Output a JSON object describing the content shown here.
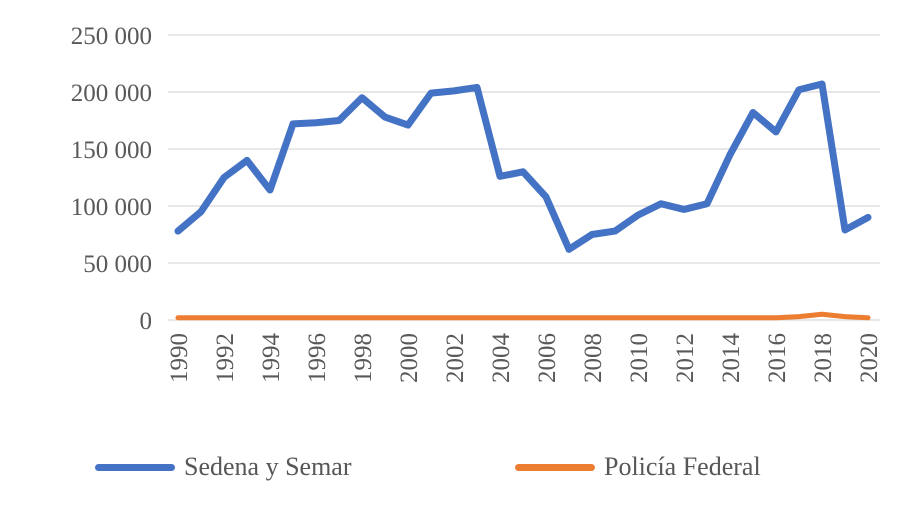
{
  "chart_data": {
    "type": "line",
    "title": "",
    "xlabel": "",
    "ylabel": "",
    "x": [
      1990,
      1991,
      1992,
      1993,
      1994,
      1995,
      1996,
      1997,
      1998,
      1999,
      2000,
      2001,
      2002,
      2003,
      2004,
      2005,
      2006,
      2007,
      2008,
      2009,
      2010,
      2011,
      2012,
      2013,
      2014,
      2015,
      2016,
      2017,
      2018,
      2019,
      2020
    ],
    "series": [
      {
        "name": "Sedena y Semar",
        "color": "#4472C4",
        "stroke_width": 7,
        "values": [
          78000,
          95000,
          125000,
          140000,
          114000,
          172000,
          173000,
          175000,
          195000,
          178000,
          171000,
          199000,
          201000,
          204000,
          126000,
          130000,
          108000,
          62000,
          75000,
          78000,
          92000,
          102000,
          97000,
          102000,
          145000,
          182000,
          165000,
          202000,
          207000,
          79000,
          90000
        ]
      },
      {
        "name": "Policía Federal",
        "color": "#ED7D31",
        "stroke_width": 5,
        "values": [
          2000,
          2000,
          2000,
          2000,
          2000,
          2000,
          2000,
          2000,
          2000,
          2000,
          2000,
          2000,
          2000,
          2000,
          2000,
          2000,
          2000,
          2000,
          2000,
          2000,
          2000,
          2000,
          2000,
          2000,
          2000,
          2000,
          2000,
          3000,
          5000,
          3000,
          2000
        ]
      }
    ],
    "ylim": [
      0,
      250000
    ],
    "yticks": [
      {
        "value": 0,
        "label": "0"
      },
      {
        "value": 50000,
        "label": "50 000"
      },
      {
        "value": 100000,
        "label": "100 000"
      },
      {
        "value": 150000,
        "label": "150 000"
      },
      {
        "value": 200000,
        "label": "200 000"
      },
      {
        "value": 250000,
        "label": "250 000"
      }
    ],
    "xticks": [
      1990,
      1992,
      1994,
      1996,
      1998,
      2000,
      2002,
      2004,
      2006,
      2008,
      2010,
      2012,
      2014,
      2016,
      2018,
      2020
    ],
    "grid": "horizontal",
    "gridline_color": "#D9D9D9",
    "tick_label_color": "#595959",
    "legend_position": "bottom"
  }
}
